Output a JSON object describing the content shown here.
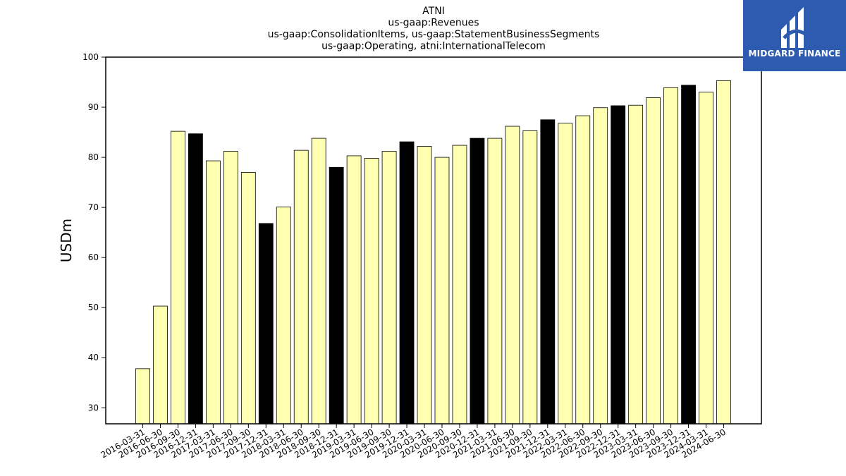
{
  "chart_data": {
    "type": "bar",
    "title": [
      "ATNI",
      "us-gaap:Revenues",
      "us-gaap:ConsolidationItems, us-gaap:StatementBusinessSegments",
      "us-gaap:Operating, atni:InternationalTelecom"
    ],
    "xlabel": "",
    "ylabel": "USDm",
    "ylim": [
      26.8,
      100
    ],
    "yticks": [
      30,
      40,
      50,
      60,
      70,
      80,
      90,
      100
    ],
    "categories": [
      "2016-03-31",
      "2016-06-30",
      "2016-09-30",
      "2016-12-31",
      "2017-03-31",
      "2017-06-30",
      "2017-09-30",
      "2017-12-31",
      "2018-03-31",
      "2018-06-30",
      "2018-09-30",
      "2018-12-31",
      "2019-03-31",
      "2019-06-30",
      "2019-09-30",
      "2019-12-31",
      "2020-03-31",
      "2020-06-30",
      "2020-09-30",
      "2020-12-31",
      "2021-03-31",
      "2021-06-30",
      "2021-09-30",
      "2021-12-31",
      "2022-03-31",
      "2022-06-30",
      "2022-09-30",
      "2022-12-31",
      "2023-03-31",
      "2023-06-30",
      "2023-09-30",
      "2023-12-31",
      "2024-03-31",
      "2024-06-30"
    ],
    "values": [
      37.8,
      50.3,
      85.2,
      84.7,
      79.3,
      81.2,
      77.0,
      66.8,
      70.1,
      81.4,
      83.8,
      78.0,
      80.3,
      79.8,
      81.2,
      83.1,
      82.2,
      80.0,
      82.4,
      83.8,
      83.8,
      86.2,
      85.3,
      87.5,
      86.8,
      88.3,
      89.9,
      90.3,
      90.4,
      91.9,
      93.9,
      94.4,
      93.0,
      95.3
    ],
    "highlight_color": "#000000",
    "bar_color": "#ffffb2",
    "highlighted": [
      3,
      7,
      11,
      15,
      19,
      23,
      27,
      31
    ],
    "grid": false,
    "legend": "none"
  },
  "logo": {
    "text": "MIDGARD FINANCE",
    "color": "#2d5bb0"
  }
}
